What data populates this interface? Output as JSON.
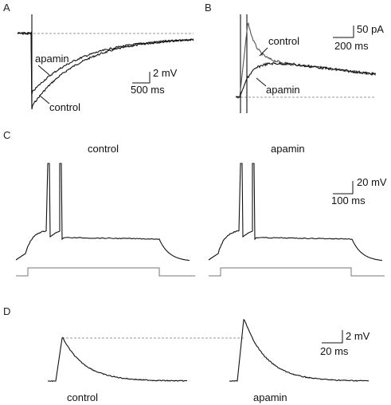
{
  "panels": {
    "A": {
      "letter": "A",
      "labels": [
        "apamin",
        "control"
      ],
      "scale": {
        "y": "2 mV",
        "x": "500 ms"
      }
    },
    "B": {
      "letter": "B",
      "labels": [
        "control",
        "apamin"
      ],
      "scale": {
        "y": "50 pA",
        "x": "200 ms"
      }
    },
    "C": {
      "letter": "C",
      "labels": [
        "control",
        "apamin"
      ],
      "scale": {
        "y": "20 mV",
        "x": "100 ms"
      }
    },
    "D": {
      "letter": "D",
      "labels": [
        "control",
        "apamin"
      ],
      "scale": {
        "y": "2 mV",
        "x": "20 ms"
      }
    }
  }
}
